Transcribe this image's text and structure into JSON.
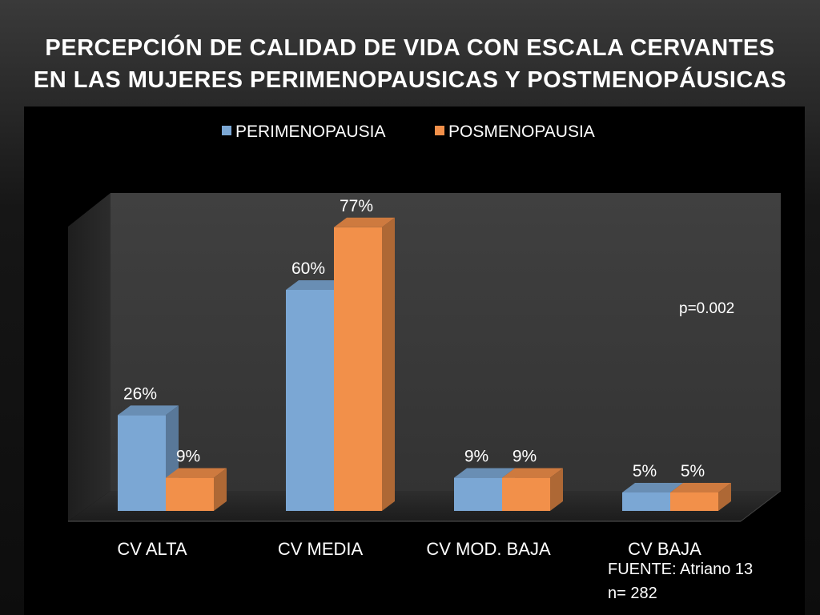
{
  "title": {
    "line1": "PERCEPCIÓN DE CALIDAD DE VIDA CON ESCALA CERVANTES",
    "line2": "EN LAS MUJERES  PERIMENOPAUSICAS Y POSTMENOPÁUSICAS"
  },
  "chart_data": {
    "type": "bar",
    "title": "",
    "xlabel": "",
    "ylabel": "",
    "ylim": [
      0,
      100
    ],
    "grid": false,
    "legend_position": "top-center",
    "categories": [
      "CV ALTA",
      "CV MEDIA",
      "CV MOD. BAJA",
      "CV BAJA"
    ],
    "series": [
      {
        "name": "PERIMENOPAUSIA",
        "values": [
          26,
          60,
          9,
          5
        ],
        "labels": [
          "26%",
          "60%",
          "9%",
          "5%"
        ],
        "color": "#7ba7d4"
      },
      {
        "name": "POSMENOPAUSIA",
        "values": [
          9,
          77,
          9,
          5
        ],
        "labels": [
          "9%",
          "77%",
          "9%",
          "5%"
        ],
        "color": "#f2904a"
      }
    ],
    "annotation": "p=0.002"
  },
  "footer": {
    "source": "FUENTE: Atriano 13",
    "n": "n= 282"
  },
  "colors": {
    "background": "#000000",
    "plot_wall": "#3a3a3a",
    "floor": "#262626"
  }
}
